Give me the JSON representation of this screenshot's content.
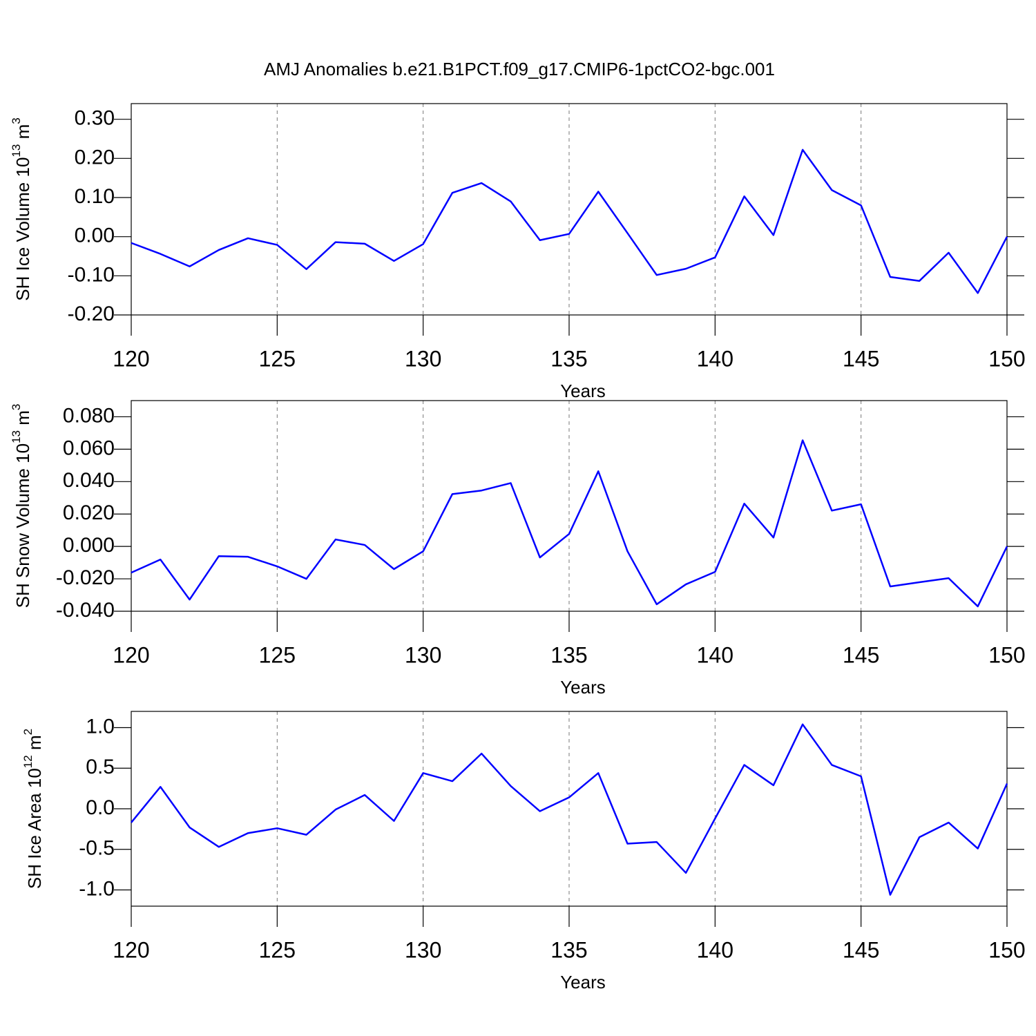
{
  "title": "AMJ Anomalies b.e21.B1PCT.f09_g17.CMIP6-1pctCO2-bgc.001",
  "chart_data": [
    {
      "type": "line",
      "xlabel": "Years",
      "ylabel": [
        "SH Ice Volume 10",
        "13",
        " m",
        "3"
      ],
      "x": [
        120,
        121,
        122,
        123,
        124,
        125,
        126,
        127,
        128,
        129,
        130,
        131,
        132,
        133,
        134,
        135,
        136,
        137,
        138,
        139,
        140,
        141,
        142,
        143,
        144,
        145,
        146,
        147,
        148,
        149,
        150
      ],
      "series": [
        {
          "name": "SH Ice Volume",
          "color": "#0000ff",
          "values": [
            -0.016,
            -0.044,
            -0.076,
            -0.034,
            -0.004,
            -0.021,
            -0.083,
            -0.014,
            -0.018,
            -0.062,
            -0.019,
            0.112,
            0.137,
            0.09,
            -0.009,
            0.007,
            0.115,
            0.009,
            -0.098,
            -0.082,
            -0.053,
            0.103,
            0.004,
            0.222,
            0.119,
            0.08,
            -0.103,
            -0.113,
            -0.041,
            -0.144,
            0.0
          ]
        }
      ],
      "xlim": [
        120,
        150
      ],
      "xticks": [
        120,
        125,
        130,
        135,
        140,
        145,
        150
      ],
      "ylim": [
        -0.2,
        0.34
      ],
      "yticks": [
        {
          "value": -0.2,
          "label": "-0.20"
        },
        {
          "value": -0.1,
          "label": "-0.10"
        },
        {
          "value": 0,
          "label": "0.00"
        },
        {
          "value": 0.1,
          "label": "0.10"
        },
        {
          "value": 0.2,
          "label": "0.20"
        },
        {
          "value": 0.3,
          "label": "0.30"
        }
      ],
      "grid": true
    },
    {
      "type": "line",
      "xlabel": "Years",
      "ylabel": [
        "SH Snow Volume 10",
        "13",
        " m",
        "3"
      ],
      "x": [
        120,
        121,
        122,
        123,
        124,
        125,
        126,
        127,
        128,
        129,
        130,
        131,
        132,
        133,
        134,
        135,
        136,
        137,
        138,
        139,
        140,
        141,
        142,
        143,
        144,
        145,
        146,
        147,
        148,
        149,
        150
      ],
      "series": [
        {
          "name": "SH Snow Volume",
          "color": "#0000ff",
          "values": [
            -0.0162,
            -0.0081,
            -0.0328,
            -0.006,
            -0.0064,
            -0.0123,
            -0.02,
            0.0043,
            0.0009,
            -0.014,
            -0.003,
            0.0323,
            0.0345,
            0.0391,
            -0.0068,
            0.0077,
            0.0464,
            -0.003,
            -0.0357,
            -0.0234,
            -0.0157,
            0.0264,
            0.0055,
            0.0655,
            0.0221,
            0.026,
            -0.0247,
            -0.0221,
            -0.0196,
            -0.037,
            0.0
          ]
        }
      ],
      "xlim": [
        120,
        150
      ],
      "xticks": [
        120,
        125,
        130,
        135,
        140,
        145,
        150
      ],
      "ylim": [
        -0.04,
        0.09
      ],
      "yticks": [
        {
          "value": -0.04,
          "label": "-0.040"
        },
        {
          "value": -0.02,
          "label": "-0.020"
        },
        {
          "value": 0,
          "label": "0.000"
        },
        {
          "value": 0.02,
          "label": "0.020"
        },
        {
          "value": 0.04,
          "label": "0.040"
        },
        {
          "value": 0.06,
          "label": "0.060"
        },
        {
          "value": 0.08,
          "label": "0.080"
        }
      ],
      "grid": true
    },
    {
      "type": "line",
      "xlabel": "Years",
      "ylabel": [
        "SH Ice Area 10",
        "12",
        " m",
        "2"
      ],
      "x": [
        120,
        121,
        122,
        123,
        124,
        125,
        126,
        127,
        128,
        129,
        130,
        131,
        132,
        133,
        134,
        135,
        136,
        137,
        138,
        139,
        140,
        141,
        142,
        143,
        144,
        145,
        146,
        147,
        148,
        149,
        150
      ],
      "series": [
        {
          "name": "SH Ice Area",
          "color": "#0000ff",
          "values": [
            -0.17,
            0.27,
            -0.23,
            -0.47,
            -0.3,
            -0.24,
            -0.32,
            -0.01,
            0.17,
            -0.15,
            0.44,
            0.34,
            0.68,
            0.28,
            -0.03,
            0.14,
            0.44,
            -0.43,
            -0.41,
            -0.79,
            -0.12,
            0.54,
            0.29,
            1.04,
            0.54,
            0.4,
            -1.06,
            -0.35,
            -0.17,
            -0.49,
            0.31
          ]
        }
      ],
      "xlim": [
        120,
        150
      ],
      "xticks": [
        120,
        125,
        130,
        135,
        140,
        145,
        150
      ],
      "ylim": [
        -1.2,
        1.2
      ],
      "yticks": [
        {
          "value": -1,
          "label": "-1.0"
        },
        {
          "value": -0.5,
          "label": "-0.5"
        },
        {
          "value": 0,
          "label": "0.0"
        },
        {
          "value": 0.5,
          "label": "0.5"
        },
        {
          "value": 1,
          "label": "1.0"
        }
      ],
      "grid": true
    }
  ]
}
